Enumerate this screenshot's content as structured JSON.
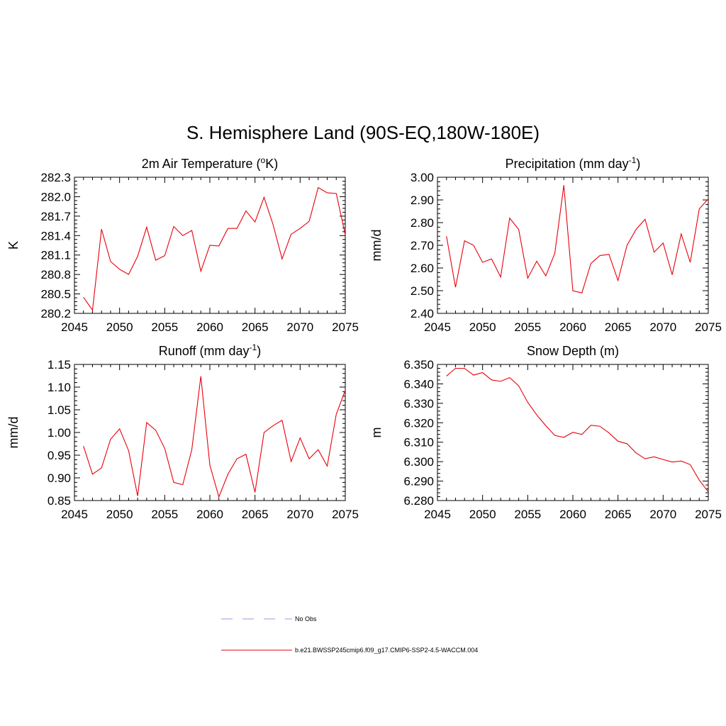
{
  "page": {
    "title": "S. Hemisphere Land (90S-EQ,180W-180E)"
  },
  "legend": {
    "items": [
      {
        "label": "No Obs",
        "color": "#9999dd",
        "dash": "dashed"
      },
      {
        "label": "b.e21.BWSSP245cmip6.f09_g17.CMIP6-SSP2-4.5-WACCM.004",
        "color": "#e8000b",
        "dash": "solid"
      }
    ]
  },
  "chart_data": [
    {
      "type": "line",
      "title": "2m Air Temperature (°K)",
      "title_parts": {
        "pre": "2m Air Temperature (",
        "sup": "o",
        "post": "K)"
      },
      "xlabel": "",
      "ylabel": "K",
      "xlim": [
        2045,
        2075
      ],
      "ylim": [
        280.2,
        282.3
      ],
      "xticks": [
        2045,
        2050,
        2055,
        2060,
        2065,
        2070,
        2075
      ],
      "yticks": [
        "280.2",
        "280.5",
        "280.8",
        "281.1",
        "281.4",
        "281.7",
        "282.0",
        "282.3"
      ],
      "series": [
        {
          "color": "#e8000b",
          "x": [
            2046,
            2047,
            2048,
            2049,
            2050,
            2051,
            2052,
            2053,
            2054,
            2055,
            2056,
            2057,
            2058,
            2059,
            2060,
            2061,
            2062,
            2063,
            2064,
            2065,
            2066,
            2067,
            2068,
            2069,
            2070,
            2071,
            2072,
            2073,
            2074,
            2075
          ],
          "y": [
            280.45,
            280.25,
            281.5,
            281.0,
            280.88,
            280.8,
            281.08,
            281.53,
            281.02,
            281.09,
            281.54,
            281.4,
            281.48,
            280.85,
            281.25,
            281.24,
            281.51,
            281.51,
            281.78,
            281.61,
            281.99,
            281.57,
            281.04,
            281.42,
            281.51,
            281.62,
            282.14,
            282.06,
            282.05,
            281.41
          ]
        }
      ]
    },
    {
      "type": "line",
      "title": "Precipitation (mm day-1)",
      "title_parts": {
        "pre": "Precipitation (mm day",
        "sup": "-1",
        "post": ")"
      },
      "xlabel": "",
      "ylabel": "mm/d",
      "xlim": [
        2045,
        2075
      ],
      "ylim": [
        2.4,
        3.0
      ],
      "xticks": [
        2045,
        2050,
        2055,
        2060,
        2065,
        2070,
        2075
      ],
      "yticks": [
        "2.40",
        "2.50",
        "2.60",
        "2.70",
        "2.80",
        "2.90",
        "3.00"
      ],
      "series": [
        {
          "color": "#e8000b",
          "x": [
            2046,
            2047,
            2048,
            2049,
            2050,
            2051,
            2052,
            2053,
            2054,
            2055,
            2056,
            2057,
            2058,
            2059,
            2060,
            2061,
            2062,
            2063,
            2064,
            2065,
            2066,
            2067,
            2068,
            2069,
            2070,
            2071,
            2072,
            2073,
            2074,
            2075
          ],
          "y": [
            2.74,
            2.515,
            2.72,
            2.7,
            2.625,
            2.64,
            2.56,
            2.82,
            2.77,
            2.555,
            2.63,
            2.565,
            2.665,
            2.965,
            2.5,
            2.49,
            2.62,
            2.655,
            2.66,
            2.545,
            2.7,
            2.77,
            2.815,
            2.67,
            2.71,
            2.57,
            2.75,
            2.625,
            2.86,
            2.905
          ]
        }
      ]
    },
    {
      "type": "line",
      "title": "Runoff (mm day-1)",
      "title_parts": {
        "pre": "Runoff (mm day",
        "sup": "-1",
        "post": ")"
      },
      "xlabel": "",
      "ylabel": "mm/d",
      "xlim": [
        2045,
        2075
      ],
      "ylim": [
        0.85,
        1.15
      ],
      "xticks": [
        2045,
        2050,
        2055,
        2060,
        2065,
        2070,
        2075
      ],
      "yticks": [
        "0.85",
        "0.90",
        "0.95",
        "1.00",
        "1.05",
        "1.10",
        "1.15"
      ],
      "series": [
        {
          "color": "#e8000b",
          "x": [
            2046,
            2047,
            2048,
            2049,
            2050,
            2051,
            2052,
            2053,
            2054,
            2055,
            2056,
            2057,
            2058,
            2059,
            2060,
            2061,
            2062,
            2063,
            2064,
            2065,
            2066,
            2067,
            2068,
            2069,
            2070,
            2071,
            2072,
            2073,
            2074,
            2075
          ],
          "y": [
            0.97,
            0.908,
            0.922,
            0.985,
            1.008,
            0.96,
            0.86,
            1.022,
            1.005,
            0.965,
            0.89,
            0.885,
            0.962,
            1.124,
            0.928,
            0.858,
            0.908,
            0.942,
            0.952,
            0.868,
            1.0,
            1.015,
            1.027,
            0.936,
            0.988,
            0.942,
            0.962,
            0.926,
            1.04,
            1.093
          ]
        }
      ]
    },
    {
      "type": "line",
      "title": "Snow Depth (m)",
      "title_parts": {
        "pre": "Snow Depth (m)",
        "sup": "",
        "post": ""
      },
      "xlabel": "",
      "ylabel": "m",
      "xlim": [
        2045,
        2075
      ],
      "ylim": [
        6.28,
        6.35
      ],
      "xticks": [
        2045,
        2050,
        2055,
        2060,
        2065,
        2070,
        2075
      ],
      "yticks": [
        "6.280",
        "6.290",
        "6.300",
        "6.310",
        "6.320",
        "6.330",
        "6.340",
        "6.350"
      ],
      "series": [
        {
          "color": "#e8000b",
          "x": [
            2046,
            2047,
            2048,
            2049,
            2050,
            2051,
            2052,
            2053,
            2054,
            2055,
            2056,
            2057,
            2058,
            2059,
            2060,
            2061,
            2062,
            2063,
            2064,
            2065,
            2066,
            2067,
            2068,
            2069,
            2070,
            2071,
            2072,
            2073,
            2074,
            2075
          ],
          "y": [
            6.344,
            6.348,
            6.348,
            6.3445,
            6.3458,
            6.342,
            6.3413,
            6.3432,
            6.339,
            6.3305,
            6.324,
            6.3185,
            6.3135,
            6.3125,
            6.3151,
            6.314,
            6.3187,
            6.3182,
            6.3148,
            6.3105,
            6.3092,
            6.3045,
            6.3015,
            6.3025,
            6.3011,
            6.2998,
            6.3003,
            6.2985,
            6.2905,
            6.2845
          ]
        }
      ]
    }
  ]
}
